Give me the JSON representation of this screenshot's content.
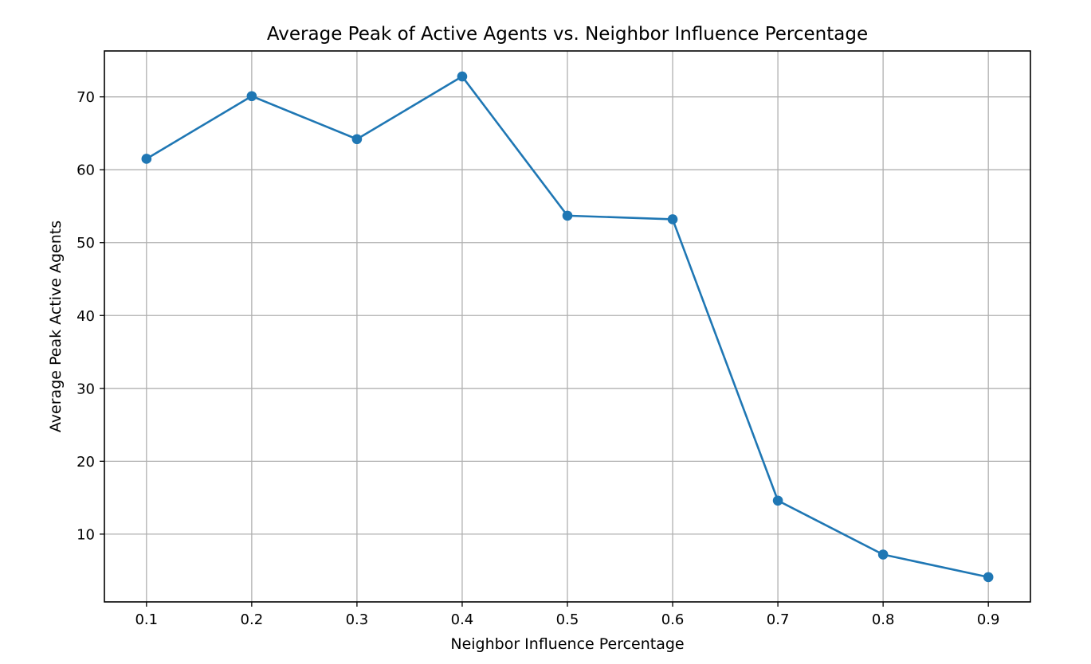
{
  "chart_data": {
    "type": "line",
    "title": "Average Peak of Active Agents vs. Neighbor Influence Percentage",
    "xlabel": "Neighbor Influence Percentage",
    "ylabel": "Average Peak Active Agents",
    "x": [
      0.1,
      0.2,
      0.3,
      0.4,
      0.5,
      0.6,
      0.7,
      0.8,
      0.9
    ],
    "series": [
      {
        "values": [
          61.5,
          70.1,
          64.2,
          72.8,
          53.7,
          53.2,
          14.6,
          7.2,
          4.1
        ],
        "color": "#1f77b4",
        "marker": "circle"
      }
    ],
    "xticks": [
      "0.1",
      "0.2",
      "0.3",
      "0.4",
      "0.5",
      "0.6",
      "0.7",
      "0.8",
      "0.9"
    ],
    "yticks": [
      "10",
      "20",
      "30",
      "40",
      "50",
      "60",
      "70"
    ],
    "xlim": [
      0.06,
      0.94
    ],
    "ylim": [
      0.7,
      76.3
    ],
    "grid": true,
    "legend": false
  }
}
